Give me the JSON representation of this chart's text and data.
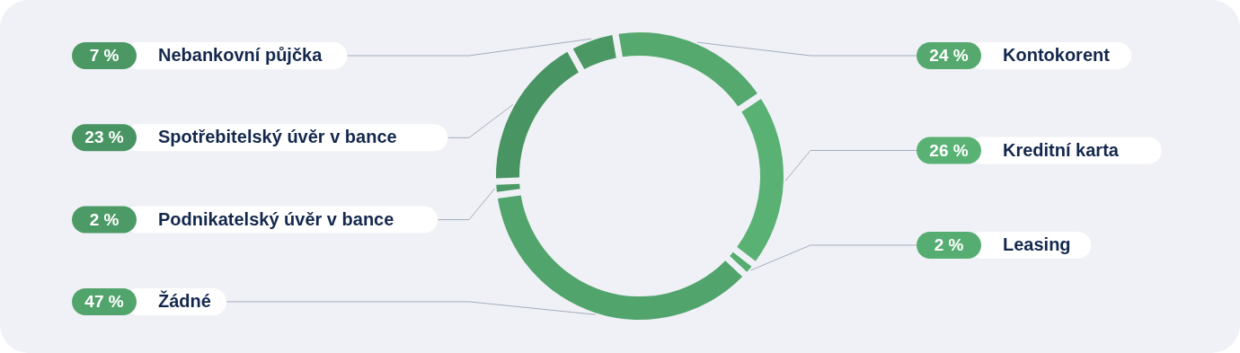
{
  "chart_data": {
    "type": "donut",
    "categories": [
      "Kontokorent",
      "Kreditní karta",
      "Leasing",
      "Žádné",
      "Podnikatelský úvěr v bance",
      "Spotřebitelský úvěr v bance",
      "Nebankovní půjčka"
    ],
    "values": [
      24,
      26,
      2,
      47,
      2,
      23,
      7
    ],
    "colors": [
      "#55a96f",
      "#59b274",
      "#56ad71",
      "#52a46d",
      "#4c9a66",
      "#489462",
      "#4b9865"
    ],
    "value_labels": [
      "24 %",
      "26 %",
      "2 %",
      "47 %",
      "2 %",
      "23 %",
      "7 %"
    ],
    "legend": "left"
  }
}
